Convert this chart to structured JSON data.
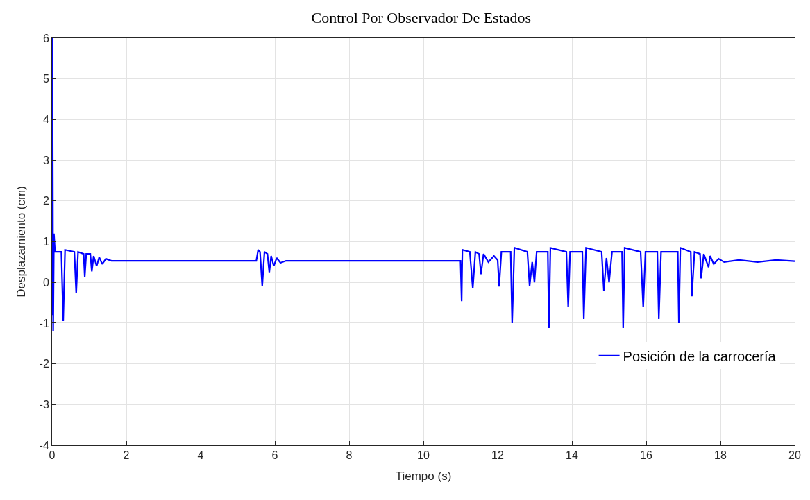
{
  "chart_data": {
    "type": "line",
    "title": "Control Por Observador De Estados",
    "xlabel": "Tiempo (s)",
    "ylabel": "Desplazamiento (cm)",
    "xlim": [
      0,
      20
    ],
    "xticks": [
      0,
      2,
      4,
      6,
      8,
      10,
      12,
      14,
      16,
      18,
      20
    ],
    "ylim": [
      -4,
      6
    ],
    "yticks": [
      -4,
      -3,
      -2,
      -1,
      0,
      1,
      2,
      3,
      4,
      5,
      6
    ],
    "grid": true,
    "legend": "bottom right",
    "marker": "none",
    "line_style": "solid",
    "series": [
      {
        "name": "Posición de la carrocería",
        "color": "#0000ff",
        "x": [
          0,
          0.01,
          0.03,
          0.05,
          0.08,
          0.25,
          0.3,
          0.35,
          0.6,
          0.65,
          0.7,
          0.85,
          0.88,
          0.92,
          1.03,
          1.07,
          1.12,
          1.2,
          1.27,
          1.35,
          1.45,
          1.6,
          5.5,
          5.55,
          5.6,
          5.66,
          5.72,
          5.8,
          5.85,
          5.9,
          5.97,
          6.05,
          6.15,
          6.3,
          11.0,
          11.03,
          11.05,
          11.25,
          11.33,
          11.4,
          11.5,
          11.55,
          11.62,
          11.75,
          11.9,
          12.0,
          12.04,
          12.1,
          12.35,
          12.39,
          12.45,
          12.8,
          12.86,
          12.93,
          12.99,
          13.05,
          13.35,
          13.38,
          13.42,
          13.85,
          13.9,
          13.95,
          14.28,
          14.32,
          14.38,
          14.8,
          14.86,
          14.93,
          15.0,
          15.08,
          15.35,
          15.38,
          15.42,
          15.85,
          15.92,
          15.98,
          16.3,
          16.34,
          16.4,
          16.85,
          16.88,
          16.92,
          17.2,
          17.23,
          17.3,
          17.45,
          17.48,
          17.55,
          17.68,
          17.72,
          17.82,
          17.95,
          18.1,
          18.5,
          19.0,
          19.5,
          20.0
        ],
        "values": [
          -0.8,
          6,
          -1.2,
          1.2,
          0.75,
          0.75,
          -0.95,
          0.8,
          0.75,
          -0.27,
          0.75,
          0.7,
          0.14,
          0.7,
          0.7,
          0.27,
          0.65,
          0.4,
          0.62,
          0.45,
          0.58,
          0.53,
          0.53,
          0.8,
          0.75,
          -0.09,
          0.75,
          0.7,
          0.25,
          0.65,
          0.4,
          0.6,
          0.48,
          0.53,
          0.53,
          -0.46,
          0.8,
          0.75,
          -0.15,
          0.75,
          0.7,
          0.2,
          0.7,
          0.5,
          0.65,
          0.55,
          -0.1,
          0.75,
          0.75,
          -1.0,
          0.85,
          0.75,
          -0.09,
          0.5,
          0.0,
          0.75,
          0.75,
          -1.12,
          0.85,
          0.75,
          -0.61,
          0.75,
          0.75,
          -0.9,
          0.85,
          0.75,
          -0.2,
          0.6,
          0.0,
          0.75,
          0.75,
          -1.12,
          0.85,
          0.75,
          -0.61,
          0.75,
          0.75,
          -0.9,
          0.75,
          0.75,
          -1.0,
          0.85,
          0.75,
          -0.34,
          0.75,
          0.7,
          0.1,
          0.7,
          0.37,
          0.65,
          0.45,
          0.58,
          0.5,
          0.55,
          0.5,
          0.55,
          0.52
        ]
      }
    ]
  }
}
